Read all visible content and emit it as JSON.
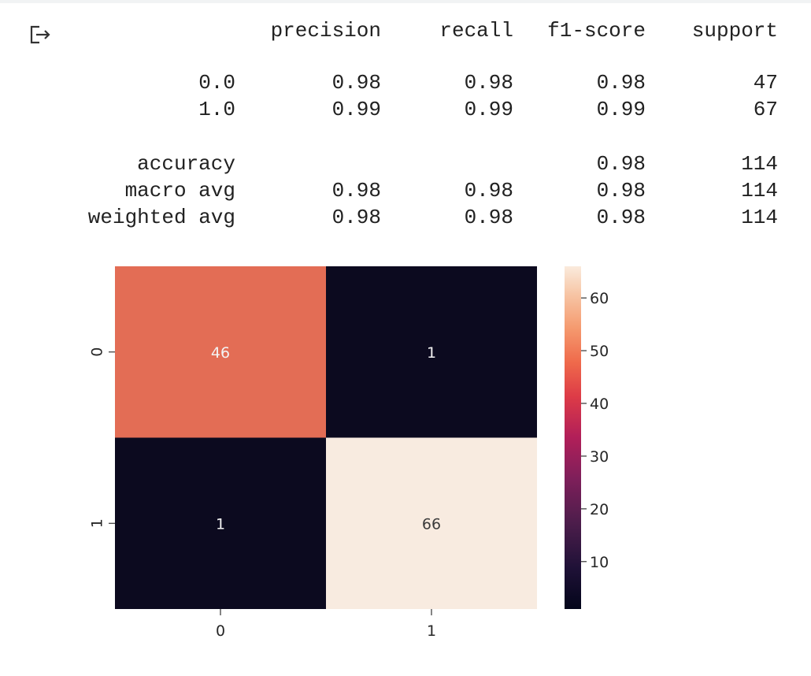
{
  "output_icon": "output-arrow-icon",
  "report": {
    "headers": [
      "precision",
      "recall",
      "f1-score",
      "support"
    ],
    "rows": [
      {
        "label": "0.0",
        "precision": "0.98",
        "recall": "0.98",
        "f1": "0.98",
        "support": "47"
      },
      {
        "label": "1.0",
        "precision": "0.99",
        "recall": "0.99",
        "f1": "0.99",
        "support": "67"
      },
      {
        "label": "accuracy",
        "precision": "",
        "recall": "",
        "f1": "0.98",
        "support": "114"
      },
      {
        "label": "macro avg",
        "precision": "0.98",
        "recall": "0.98",
        "f1": "0.98",
        "support": "114"
      },
      {
        "label": "weighted avg",
        "precision": "0.98",
        "recall": "0.98",
        "f1": "0.98",
        "support": "114"
      }
    ]
  },
  "chart_data": {
    "type": "heatmap",
    "title": "",
    "xlabel": "",
    "ylabel": "",
    "x_categories": [
      "0",
      "1"
    ],
    "y_categories": [
      "0",
      "1"
    ],
    "values": [
      [
        46,
        1
      ],
      [
        1,
        66
      ]
    ],
    "annotations": true,
    "colormap": "rocket",
    "colorbar": {
      "min": 1,
      "max": 66,
      "ticks": [
        10,
        20,
        30,
        40,
        50,
        60
      ],
      "placement": "right"
    },
    "colors": {
      "cell_0_0": "#e36d55",
      "cell_0_1": "#0c0a1f",
      "cell_1_0": "#0c0a1f",
      "cell_1_1": "#f8ebe0"
    }
  }
}
